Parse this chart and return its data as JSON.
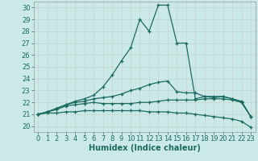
{
  "xlabel": "Humidex (Indice chaleur)",
  "xlim": [
    -0.5,
    23.5
  ],
  "ylim": [
    19.5,
    30.5
  ],
  "xticks": [
    0,
    1,
    2,
    3,
    4,
    5,
    6,
    7,
    8,
    9,
    10,
    11,
    12,
    13,
    14,
    15,
    16,
    17,
    18,
    19,
    20,
    21,
    22,
    23
  ],
  "yticks": [
    20,
    21,
    22,
    23,
    24,
    25,
    26,
    27,
    28,
    29,
    30
  ],
  "bg_color": "#cce9e9",
  "grid_color": "#b0d8d8",
  "line_color": "#1a6b60",
  "lines": [
    {
      "x": [
        0,
        1,
        2,
        3,
        4,
        5,
        6,
        7,
        8,
        9,
        10,
        11,
        12,
        13,
        14,
        15,
        16,
        17,
        18,
        19,
        20,
        21,
        22,
        23
      ],
      "y": [
        21.0,
        21.1,
        21.1,
        21.2,
        21.2,
        21.3,
        21.3,
        21.3,
        21.3,
        21.3,
        21.3,
        21.3,
        21.2,
        21.2,
        21.2,
        21.1,
        21.1,
        21.0,
        20.9,
        20.8,
        20.7,
        20.6,
        20.4,
        19.9
      ]
    },
    {
      "x": [
        0,
        1,
        2,
        3,
        4,
        5,
        6,
        7,
        8,
        9,
        10,
        11,
        12,
        13,
        14,
        15,
        16,
        17,
        18,
        19,
        20,
        21,
        22,
        23
      ],
      "y": [
        21.0,
        21.2,
        21.4,
        21.7,
        21.8,
        21.9,
        22.0,
        21.9,
        21.9,
        21.9,
        21.9,
        22.0,
        22.0,
        22.1,
        22.2,
        22.2,
        22.2,
        22.2,
        22.3,
        22.3,
        22.3,
        22.2,
        22.0,
        20.8
      ]
    },
    {
      "x": [
        0,
        1,
        2,
        3,
        4,
        5,
        6,
        7,
        8,
        9,
        10,
        11,
        12,
        13,
        14,
        15,
        16,
        17,
        18,
        19,
        20,
        21,
        22,
        23
      ],
      "y": [
        21.0,
        21.2,
        21.5,
        21.8,
        22.0,
        22.1,
        22.3,
        22.4,
        22.5,
        22.7,
        23.0,
        23.2,
        23.5,
        23.7,
        23.8,
        22.9,
        22.8,
        22.8,
        22.5,
        22.4,
        22.5,
        22.3,
        22.1,
        20.8
      ]
    },
    {
      "x": [
        0,
        1,
        2,
        3,
        4,
        5,
        6,
        7,
        8,
        9,
        10,
        11,
        12,
        13,
        14,
        15,
        16,
        17,
        18,
        19,
        20,
        21,
        22,
        23
      ],
      "y": [
        21.0,
        21.2,
        21.5,
        21.8,
        22.1,
        22.3,
        22.6,
        23.3,
        24.3,
        25.5,
        26.6,
        29.0,
        28.0,
        30.2,
        30.2,
        27.0,
        27.0,
        22.3,
        22.5,
        22.5,
        22.5,
        22.3,
        22.0,
        20.8
      ]
    }
  ],
  "font_color": "#1a6b60",
  "label_fontsize": 7,
  "tick_fontsize": 6
}
